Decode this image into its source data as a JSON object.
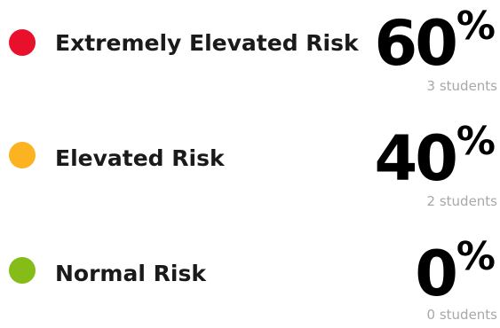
{
  "risks": [
    {
      "label": "Extremely Elevated Risk",
      "percent": "60",
      "percent_sign": "%",
      "count": "3 students",
      "color": "#e8102a",
      "indicator_icon": "red-circle-icon"
    },
    {
      "label": "Elevated Risk",
      "percent": "40",
      "percent_sign": "%",
      "count": "2 students",
      "color": "#fbb322",
      "indicator_icon": "yellow-circle-icon"
    },
    {
      "label": "Normal Risk",
      "percent": "0",
      "percent_sign": "%",
      "count": "0 students",
      "color": "#86bc18",
      "indicator_icon": "green-circle-icon"
    }
  ]
}
